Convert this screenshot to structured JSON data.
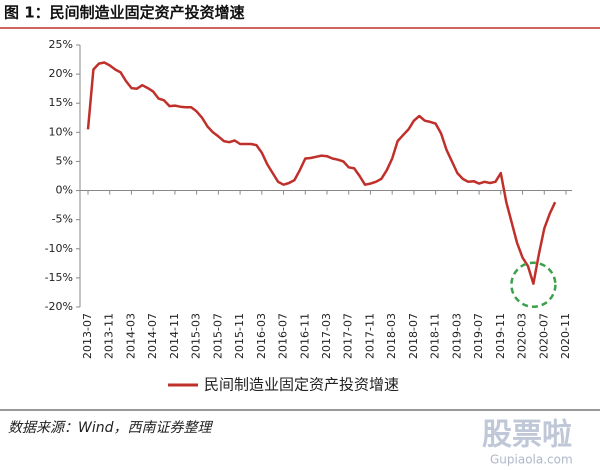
{
  "chart_data": {
    "type": "line",
    "title": "图 1：民间制造业固定资产投资增速",
    "source": "数据来源：Wind，西南证券整理",
    "watermark": [
      "股票啦",
      "Gupiaola.com"
    ],
    "categories": [
      "2013-07",
      null,
      null,
      null,
      "2013-11",
      null,
      null,
      null,
      "2014-03",
      null,
      null,
      null,
      "2014-07",
      null,
      null,
      null,
      "2014-11",
      null,
      null,
      null,
      "2015-03",
      null,
      null,
      null,
      "2015-07",
      null,
      null,
      null,
      "2015-11",
      null,
      null,
      null,
      "2016-03",
      null,
      null,
      null,
      "2016-07",
      null,
      null,
      null,
      "2016-11",
      null,
      null,
      null,
      "2017-03",
      null,
      null,
      null,
      "2017-07",
      null,
      null,
      null,
      "2017-11",
      null,
      null,
      null,
      "2018-03",
      null,
      null,
      null,
      "2018-07",
      null,
      null,
      null,
      "2018-11",
      null,
      null,
      null,
      "2019-03",
      null,
      null,
      null,
      "2019-07",
      null,
      null,
      null,
      "2019-11",
      null,
      null,
      null,
      "2020-03",
      null,
      null,
      null,
      "2020-07",
      null,
      null,
      null,
      "2020-11"
    ],
    "series": [
      {
        "name": "民间制造业固定资产投资增速",
        "color": "#c0302b",
        "values": [
          10.5,
          20.8,
          21.8,
          22.0,
          21.5,
          20.8,
          20.3,
          18.8,
          17.6,
          17.5,
          18.1,
          17.6,
          17.0,
          15.8,
          15.5,
          14.5,
          14.6,
          14.4,
          14.3,
          14.3,
          13.6,
          12.5,
          11.0,
          10.0,
          9.3,
          8.5,
          8.3,
          8.6,
          8.0,
          8.0,
          8.0,
          7.8,
          6.5,
          4.5,
          3.0,
          1.5,
          1.0,
          1.3,
          1.8,
          3.5,
          5.5,
          5.6,
          5.8,
          6.0,
          5.9,
          5.5,
          5.3,
          5.0,
          4.0,
          3.8,
          2.5,
          1.0,
          1.2,
          1.5,
          2.0,
          3.5,
          5.5,
          8.5,
          9.5,
          10.5,
          12.0,
          12.8,
          12.0,
          11.8,
          11.5,
          9.8,
          7.0,
          5.0,
          3.0,
          2.0,
          1.5,
          1.6,
          1.2,
          1.5,
          1.3,
          1.5,
          3.0,
          -2.0,
          -5.5,
          -9.0,
          -11.5,
          -13.0,
          -16.0,
          -11.0,
          -6.5,
          -4.0,
          -2.0,
          null,
          null
        ]
      }
    ],
    "ylim": [
      -20,
      25
    ],
    "yticks": [
      {
        "value": -20,
        "label": "-20%"
      },
      {
        "value": -15,
        "label": "-15%"
      },
      {
        "value": -10,
        "label": "-10%"
      },
      {
        "value": -5,
        "label": "-5%"
      },
      {
        "value": 0,
        "label": "0%"
      },
      {
        "value": 5,
        "label": "5%"
      },
      {
        "value": 10,
        "label": "10%"
      },
      {
        "value": 15,
        "label": "15%"
      },
      {
        "value": 20,
        "label": "20%"
      },
      {
        "value": 25,
        "label": "25%"
      }
    ],
    "legend": "bottom",
    "annotation_color": "#3aa04a"
  }
}
